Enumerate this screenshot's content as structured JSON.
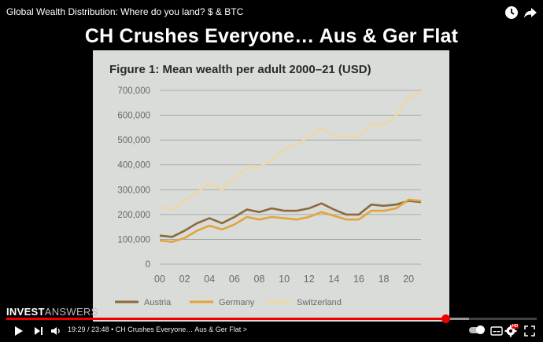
{
  "video": {
    "title": "Global Wealth Distribution: Where do you land? $ & BTC",
    "headline": "CH Crushes Everyone… Aus & Ger Flat",
    "brand_part1": "INVEST",
    "brand_part2": "ANSWERS",
    "progress": 0.828
  },
  "top_icons": [
    "watch-later-icon",
    "share-icon"
  ],
  "controls": {
    "time": "19:29 / 23:48",
    "chapter": "• CH Crushes Everyone… Aus & Ger Flat >",
    "icons": [
      "play-icon",
      "next-icon",
      "volume-icon",
      "autoplay-toggle",
      "subtitles-icon",
      "settings-icon",
      "miniplayer-icon",
      "fullscreen-icon"
    ],
    "hd_label": "HD"
  },
  "colors": {
    "austria": "#8b6a3e",
    "germany": "#e3a43f",
    "switzerland": "#efd6a8",
    "slide_bg": "#d9dcd8",
    "progress_red": "#ee0000"
  },
  "chart_data": {
    "type": "line",
    "title": "Figure 1: Mean wealth per adult 2000–21 (USD)",
    "x_tick_labels": [
      "00",
      "02",
      "04",
      "06",
      "08",
      "10",
      "12",
      "14",
      "16",
      "18",
      "20"
    ],
    "y_tick_labels": [
      "0",
      "100,000",
      "200,000",
      "300,000",
      "400,000",
      "500,000",
      "600,000",
      "700,000"
    ],
    "ylim": [
      0,
      700000
    ],
    "xlim": [
      2000,
      2021
    ],
    "grid": true,
    "legend_position": "bottom",
    "x": [
      2000,
      2001,
      2002,
      2003,
      2004,
      2005,
      2006,
      2007,
      2008,
      2009,
      2010,
      2011,
      2012,
      2013,
      2014,
      2015,
      2016,
      2017,
      2018,
      2019,
      2020,
      2021
    ],
    "series": [
      {
        "name": "Austria",
        "values": [
          115000,
          110000,
          135000,
          165000,
          185000,
          165000,
          190000,
          220000,
          210000,
          225000,
          215000,
          215000,
          225000,
          245000,
          220000,
          200000,
          200000,
          240000,
          235000,
          240000,
          255000,
          250000
        ]
      },
      {
        "name": "Germany",
        "values": [
          95000,
          90000,
          105000,
          135000,
          155000,
          140000,
          160000,
          190000,
          180000,
          190000,
          185000,
          180000,
          190000,
          210000,
          195000,
          180000,
          180000,
          215000,
          215000,
          225000,
          260000,
          255000
        ]
      },
      {
        "name": "Switzerland",
        "values": [
          230000,
          220000,
          255000,
          290000,
          325000,
          300000,
          345000,
          390000,
          390000,
          420000,
          465000,
          480000,
          515000,
          550000,
          515000,
          515000,
          515000,
          565000,
          560000,
          600000,
          670000,
          695000
        ]
      }
    ]
  }
}
